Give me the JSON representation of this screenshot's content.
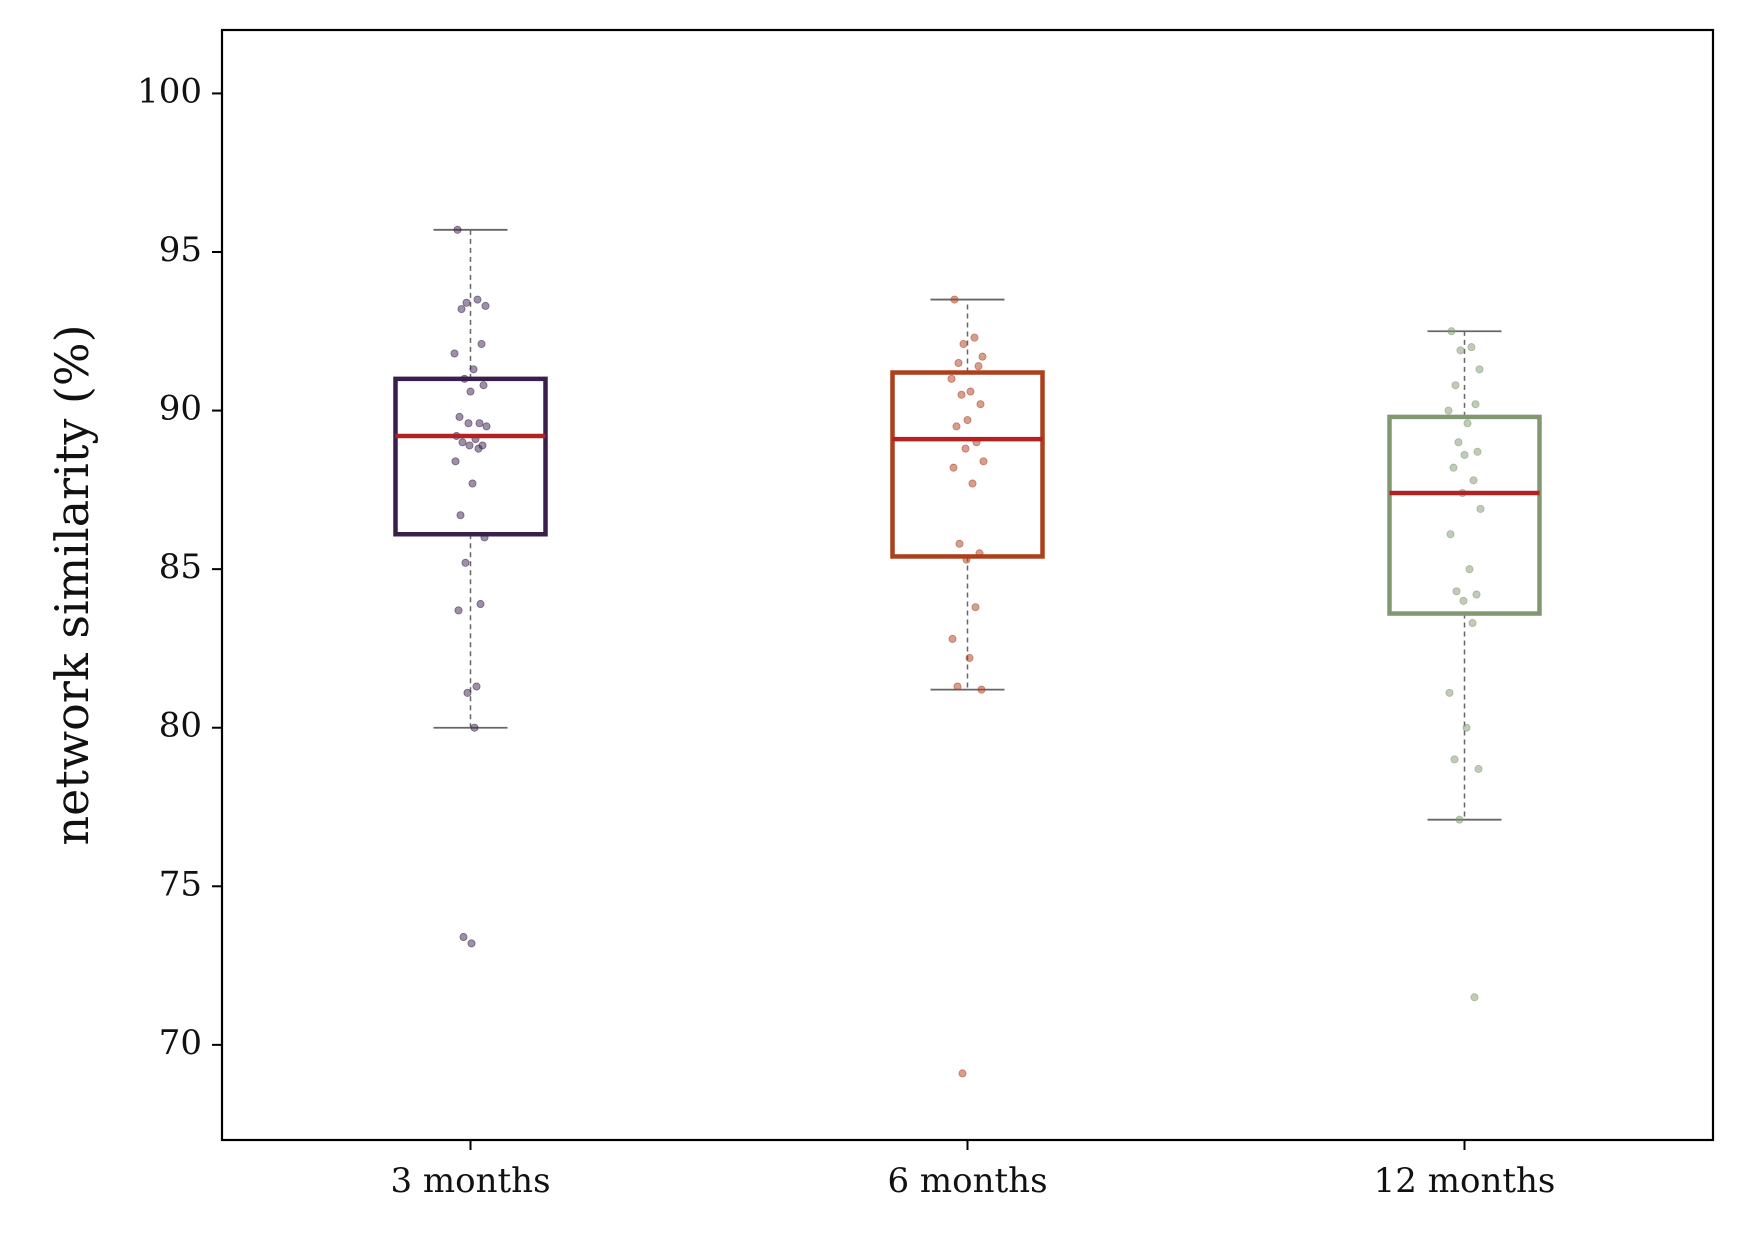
{
  "chart_data": {
    "type": "box",
    "title": "",
    "xlabel": "",
    "ylabel": "network similarity (%)",
    "ylim": [
      67,
      102
    ],
    "yticks": [
      70,
      75,
      80,
      85,
      90,
      95,
      100
    ],
    "categories": [
      "3 months",
      "6 months",
      "12 months"
    ],
    "grid": false,
    "legend": "none",
    "colors": {
      "median": "#b22222",
      "whisker": "#666666",
      "boxes": [
        "#3a1f4d",
        "#ad3f1c",
        "#829873"
      ]
    },
    "series": [
      {
        "stats": {
          "whisker_low": 80.0,
          "q1": 86.1,
          "median": 89.2,
          "q3": 91.0,
          "whisker_high": 95.7
        },
        "points": [
          95.7,
          93.5,
          93.4,
          93.3,
          93.2,
          92.1,
          91.8,
          91.3,
          91.0,
          90.8,
          90.6,
          89.8,
          89.6,
          89.6,
          89.5,
          89.2,
          89.1,
          89.0,
          88.9,
          88.9,
          88.8,
          88.4,
          87.7,
          86.7,
          86.0,
          85.2,
          83.9,
          83.7,
          81.3,
          81.1,
          80.0,
          73.4,
          73.2
        ]
      },
      {
        "stats": {
          "whisker_low": 81.2,
          "q1": 85.4,
          "median": 89.1,
          "q3": 91.2,
          "whisker_high": 93.5
        },
        "points": [
          93.5,
          92.3,
          92.1,
          91.7,
          91.5,
          91.4,
          91.0,
          90.6,
          90.5,
          90.2,
          89.7,
          89.5,
          89.0,
          88.8,
          88.4,
          88.2,
          87.7,
          85.8,
          85.5,
          85.3,
          83.8,
          82.8,
          82.2,
          81.3,
          81.2,
          69.1
        ]
      },
      {
        "stats": {
          "whisker_low": 77.1,
          "q1": 83.6,
          "median": 87.4,
          "q3": 89.8,
          "whisker_high": 92.5
        },
        "points": [
          92.5,
          92.0,
          91.9,
          91.3,
          90.8,
          90.2,
          90.0,
          89.6,
          89.0,
          88.7,
          88.6,
          88.2,
          87.8,
          87.4,
          86.9,
          86.1,
          85.0,
          84.3,
          84.2,
          84.0,
          83.3,
          81.1,
          80.0,
          79.0,
          78.7,
          77.1,
          71.5
        ]
      }
    ]
  }
}
